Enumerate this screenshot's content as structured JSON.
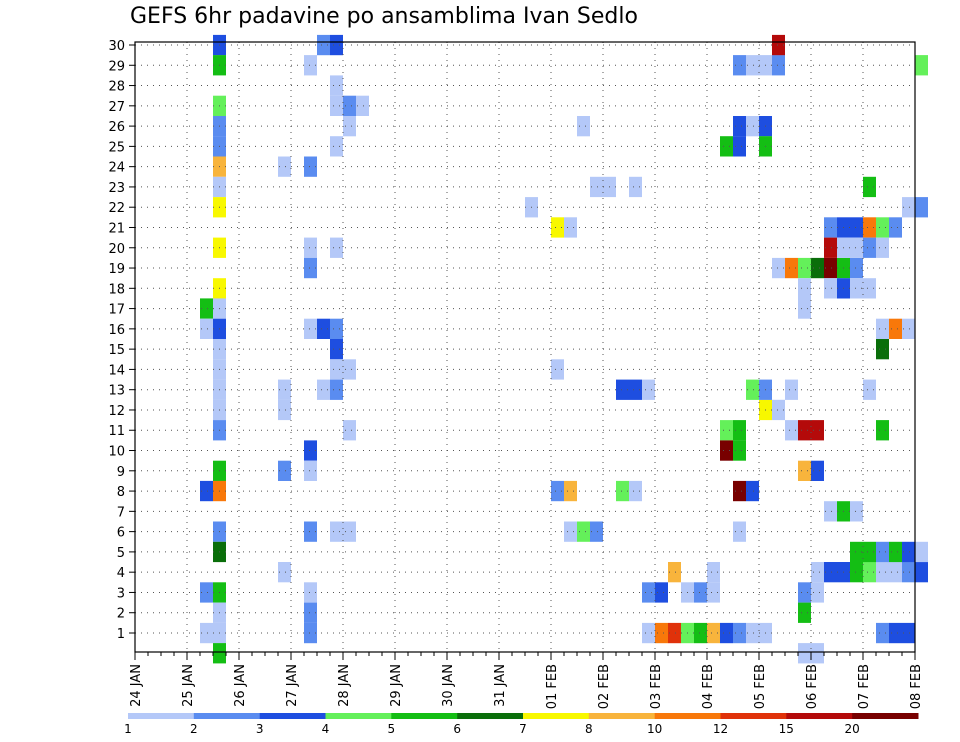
{
  "chart_data": {
    "type": "heatmap",
    "title": "GEFS 6hr padavine po ansamblima Ivan Sedlo",
    "xlabel": "",
    "ylabel": "",
    "x_ticks": [
      "24 JAN",
      "25 JAN",
      "26 JAN",
      "27 JAN",
      "28 JAN",
      "29 JAN",
      "30 JAN",
      "31 JAN",
      "01 FEB",
      "02 FEB",
      "03 FEB",
      "04 FEB",
      "05 FEB",
      "06 FEB",
      "07 FEB",
      "08 FEB"
    ],
    "x_step": "6 hours",
    "y_ticks": [
      1,
      2,
      3,
      4,
      5,
      6,
      7,
      8,
      9,
      10,
      11,
      12,
      13,
      14,
      15,
      16,
      17,
      18,
      19,
      20,
      21,
      22,
      23,
      24,
      25,
      26,
      27,
      28,
      29,
      30
    ],
    "ylim": [
      0,
      30
    ],
    "grid": true,
    "legend": {
      "placement": "bottom",
      "labels": [
        "1",
        "2",
        "3",
        "4",
        "5",
        "6",
        "7",
        "8",
        "10",
        "12",
        "15",
        "20"
      ],
      "colors": [
        "#b4c8f8",
        "#5a8cf0",
        "#1e4ee0",
        "#64f05a",
        "#14be14",
        "#0a6e0a",
        "#f8f800",
        "#f8b43c",
        "#f8780a",
        "#e0320a",
        "#b40a0a",
        "#780000"
      ]
    },
    "cells": [
      [
        "25 JAN 12",
        30,
        2
      ],
      [
        "25 JAN 12",
        29,
        4
      ],
      [
        "25 JAN 12",
        27,
        3
      ],
      [
        "25 JAN 12",
        26,
        1
      ],
      [
        "25 JAN 12",
        25,
        1
      ],
      [
        "25 JAN 12",
        24,
        7
      ],
      [
        "25 JAN 12",
        23,
        0
      ],
      [
        "25 JAN 12",
        22,
        6
      ],
      [
        "25 JAN 12",
        20,
        6
      ],
      [
        "25 JAN 12",
        18,
        6
      ],
      [
        "25 JAN 12",
        17,
        0
      ],
      [
        "25 JAN 06",
        17,
        4
      ],
      [
        "25 JAN 06",
        16,
        0
      ],
      [
        "25 JAN 12",
        16,
        2
      ],
      [
        "25 JAN 12",
        15,
        0
      ],
      [
        "25 JAN 12",
        14,
        0
      ],
      [
        "25 JAN 12",
        13,
        0
      ],
      [
        "25 JAN 12",
        12,
        0
      ],
      [
        "25 JAN 12",
        11,
        1
      ],
      [
        "25 JAN 12",
        9,
        4
      ],
      [
        "25 JAN 06",
        8,
        2
      ],
      [
        "25 JAN 12",
        8,
        8
      ],
      [
        "25 JAN 12",
        6,
        1
      ],
      [
        "25 JAN 12",
        5,
        5
      ],
      [
        "25 JAN 06",
        3,
        1
      ],
      [
        "25 JAN 12",
        3,
        4
      ],
      [
        "25 JAN 12",
        2,
        0
      ],
      [
        "25 JAN 06",
        1,
        0
      ],
      [
        "25 JAN 12",
        1,
        0
      ],
      [
        "25 JAN 12",
        0,
        4
      ],
      [
        "27 JAN 06",
        29,
        0
      ],
      [
        "26 JAN 18",
        24,
        0
      ],
      [
        "27 JAN 06",
        24,
        1
      ],
      [
        "27 JAN 06",
        20,
        0
      ],
      [
        "27 JAN 06",
        19,
        1
      ],
      [
        "27 JAN 06",
        16,
        0
      ],
      [
        "26 JAN 18",
        13,
        0
      ],
      [
        "26 JAN 18",
        12,
        0
      ],
      [
        "27 JAN 06",
        10,
        2
      ],
      [
        "26 JAN 18",
        9,
        1
      ],
      [
        "27 JAN 06",
        9,
        0
      ],
      [
        "27 JAN 06",
        6,
        1
      ],
      [
        "26 JAN 18",
        4,
        0
      ],
      [
        "27 JAN 06",
        3,
        0
      ],
      [
        "27 JAN 06",
        2,
        1
      ],
      [
        "27 JAN 06",
        1,
        1
      ],
      [
        "27 JAN 12",
        30,
        1
      ],
      [
        "27 JAN 18",
        30,
        2
      ],
      [
        "27 JAN 18",
        28,
        0
      ],
      [
        "27 JAN 18",
        27,
        0
      ],
      [
        "28 JAN 00",
        27,
        1
      ],
      [
        "28 JAN 06",
        27,
        0
      ],
      [
        "28 JAN 00",
        26,
        0
      ],
      [
        "27 JAN 18",
        25,
        0
      ],
      [
        "27 JAN 18",
        20,
        0
      ],
      [
        "27 JAN 12",
        16,
        2
      ],
      [
        "27 JAN 18",
        16,
        1
      ],
      [
        "27 JAN 18",
        15,
        2
      ],
      [
        "27 JAN 18",
        14,
        0
      ],
      [
        "28 JAN 00",
        14,
        0
      ],
      [
        "27 JAN 12",
        13,
        0
      ],
      [
        "27 JAN 18",
        13,
        1
      ],
      [
        "28 JAN 00",
        11,
        0
      ],
      [
        "27 JAN 18",
        6,
        0
      ],
      [
        "28 JAN 00",
        6,
        0
      ],
      [
        "31 JAN 12",
        22,
        0
      ],
      [
        "01 FEB 00",
        21,
        6
      ],
      [
        "01 FEB 06",
        21,
        0
      ],
      [
        "01 FEB 00",
        14,
        0
      ],
      [
        "01 FEB 00",
        8,
        1
      ],
      [
        "01 FEB 06",
        8,
        7
      ],
      [
        "01 FEB 06",
        6,
        0
      ],
      [
        "01 FEB 12",
        6,
        3
      ],
      [
        "01 FEB 18",
        6,
        1
      ],
      [
        "01 FEB 12",
        26,
        0
      ],
      [
        "01 FEB 18",
        23,
        0
      ],
      [
        "02 FEB 00",
        23,
        0
      ],
      [
        "02 FEB 12",
        23,
        0
      ],
      [
        "02 FEB 06",
        13,
        2
      ],
      [
        "02 FEB 12",
        13,
        2
      ],
      [
        "02 FEB 18",
        13,
        0
      ],
      [
        "02 FEB 06",
        8,
        3
      ],
      [
        "02 FEB 12",
        8,
        0
      ],
      [
        "02 FEB 18",
        3,
        1
      ],
      [
        "03 FEB 00",
        3,
        2
      ],
      [
        "03 FEB 12",
        3,
        0
      ],
      [
        "03 FEB 18",
        3,
        1
      ],
      [
        "04 FEB 00",
        3,
        0
      ],
      [
        "03 FEB 06",
        4,
        7
      ],
      [
        "04 FEB 00",
        4,
        0
      ],
      [
        "02 FEB 18",
        1,
        0
      ],
      [
        "03 FEB 00",
        1,
        8
      ],
      [
        "03 FEB 06",
        1,
        9
      ],
      [
        "03 FEB 12",
        1,
        3
      ],
      [
        "03 FEB 18",
        1,
        4
      ],
      [
        "04 FEB 00",
        1,
        7
      ],
      [
        "04 FEB 06",
        1,
        2
      ],
      [
        "04 FEB 12",
        1,
        1
      ],
      [
        "04 FEB 18",
        1,
        0
      ],
      [
        "05 FEB 00",
        1,
        0
      ],
      [
        "04 FEB 12",
        29,
        1
      ],
      [
        "04 FEB 18",
        29,
        0
      ],
      [
        "05 FEB 00",
        29,
        0
      ],
      [
        "05 FEB 06",
        29,
        1
      ],
      [
        "05 FEB 06",
        30,
        10
      ],
      [
        "04 FEB 12",
        26,
        2
      ],
      [
        "04 FEB 18",
        26,
        0
      ],
      [
        "05 FEB 00",
        26,
        2
      ],
      [
        "04 FEB 06",
        25,
        4
      ],
      [
        "04 FEB 12",
        25,
        2
      ],
      [
        "05 FEB 00",
        25,
        4
      ],
      [
        "04 FEB 06",
        11,
        3
      ],
      [
        "04 FEB 12",
        11,
        4
      ],
      [
        "04 FEB 06",
        10,
        11
      ],
      [
        "04 FEB 12",
        10,
        4
      ],
      [
        "04 FEB 12",
        8,
        11
      ],
      [
        "04 FEB 18",
        8,
        2
      ],
      [
        "04 FEB 12",
        6,
        0
      ],
      [
        "04 FEB 18",
        13,
        3
      ],
      [
        "05 FEB 00",
        12,
        6
      ],
      [
        "05 FEB 06",
        12,
        0
      ],
      [
        "05 FEB 00",
        13,
        1
      ],
      [
        "05 FEB 12",
        13,
        0
      ],
      [
        "05 FEB 12",
        11,
        0
      ],
      [
        "05 FEB 18",
        11,
        10
      ],
      [
        "06 FEB 00",
        11,
        10
      ],
      [
        "05 FEB 18",
        9,
        7
      ],
      [
        "06 FEB 00",
        9,
        2
      ],
      [
        "05 FEB 06",
        19,
        0
      ],
      [
        "05 FEB 12",
        19,
        8
      ],
      [
        "05 FEB 18",
        19,
        3
      ],
      [
        "06 FEB 00",
        19,
        5
      ],
      [
        "06 FEB 06",
        19,
        11
      ],
      [
        "06 FEB 12",
        19,
        4
      ],
      [
        "06 FEB 18",
        19,
        1
      ],
      [
        "05 FEB 18",
        18,
        0
      ],
      [
        "06 FEB 06",
        18,
        0
      ],
      [
        "06 FEB 12",
        18,
        2
      ],
      [
        "06 FEB 18",
        18,
        0
      ],
      [
        "07 FEB 00",
        18,
        0
      ],
      [
        "05 FEB 18",
        17,
        0
      ],
      [
        "06 FEB 06",
        21,
        1
      ],
      [
        "06 FEB 12",
        21,
        2
      ],
      [
        "06 FEB 18",
        21,
        2
      ],
      [
        "07 FEB 00",
        21,
        8
      ],
      [
        "07 FEB 06",
        21,
        3
      ],
      [
        "07 FEB 12",
        21,
        1
      ],
      [
        "06 FEB 06",
        20,
        10
      ],
      [
        "06 FEB 12",
        20,
        0
      ],
      [
        "06 FEB 18",
        20,
        0
      ],
      [
        "07 FEB 00",
        20,
        1
      ],
      [
        "07 FEB 06",
        20,
        0
      ],
      [
        "07 FEB 00",
        23,
        4
      ],
      [
        "07 FEB 18",
        22,
        0
      ],
      [
        "08 FEB 00",
        22,
        1
      ],
      [
        "08 FEB 00",
        29,
        3
      ],
      [
        "07 FEB 06",
        16,
        0
      ],
      [
        "07 FEB 12",
        16,
        8
      ],
      [
        "07 FEB 18",
        16,
        0
      ],
      [
        "07 FEB 06",
        15,
        5
      ],
      [
        "07 FEB 00",
        13,
        0
      ],
      [
        "07 FEB 06",
        11,
        4
      ],
      [
        "06 FEB 06",
        7,
        0
      ],
      [
        "06 FEB 12",
        7,
        4
      ],
      [
        "06 FEB 18",
        7,
        0
      ],
      [
        "06 FEB 00",
        4,
        0
      ],
      [
        "06 FEB 06",
        4,
        2
      ],
      [
        "06 FEB 12",
        4,
        2
      ],
      [
        "06 FEB 18",
        4,
        4
      ],
      [
        "07 FEB 00",
        4,
        3
      ],
      [
        "07 FEB 06",
        4,
        0
      ],
      [
        "07 FEB 12",
        4,
        0
      ],
      [
        "07 FEB 18",
        4,
        1
      ],
      [
        "08 FEB 00",
        4,
        2
      ],
      [
        "06 FEB 00",
        3,
        0
      ],
      [
        "05 FEB 18",
        3,
        1
      ],
      [
        "05 FEB 18",
        2,
        4
      ],
      [
        "05 FEB 18",
        0,
        0
      ],
      [
        "06 FEB 00",
        0,
        0
      ],
      [
        "06 FEB 18",
        5,
        4
      ],
      [
        "07 FEB 00",
        5,
        4
      ],
      [
        "07 FEB 06",
        5,
        1
      ],
      [
        "07 FEB 12",
        5,
        4
      ],
      [
        "07 FEB 18",
        5,
        2
      ],
      [
        "08 FEB 00",
        5,
        0
      ],
      [
        "07 FEB 06",
        1,
        1
      ],
      [
        "07 FEB 12",
        1,
        2
      ],
      [
        "07 FEB 18",
        1,
        2
      ]
    ]
  }
}
